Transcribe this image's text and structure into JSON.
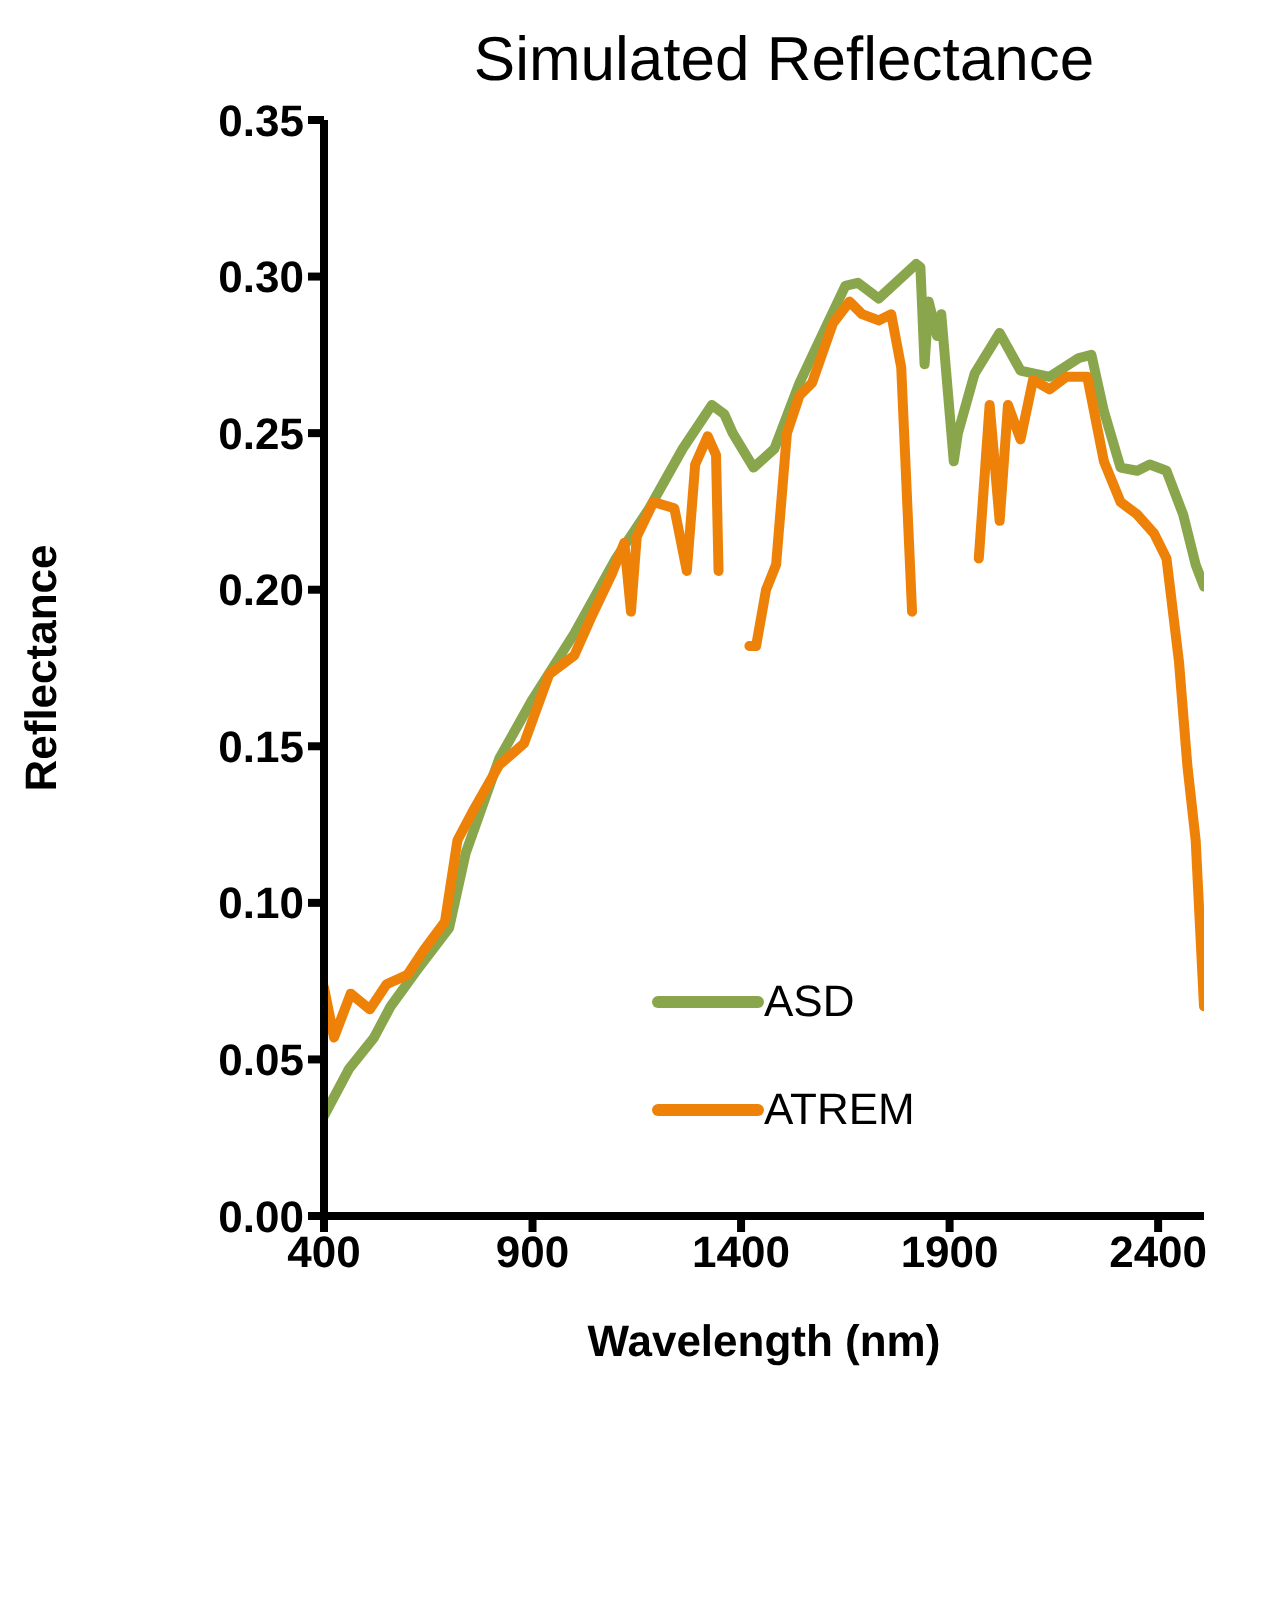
{
  "chart_data": {
    "type": "line",
    "title": "Simulated Reflectance",
    "xlabel": "Wavelength (nm)",
    "ylabel": "Reflectance",
    "xlim": [
      400,
      2510
    ],
    "xticks": [
      400,
      900,
      1400,
      1900,
      2400
    ],
    "ylim": [
      0,
      0.35
    ],
    "yticks": [
      {
        "value": 0,
        "label": "0.00"
      },
      {
        "value": 0.05,
        "label": "0.05"
      },
      {
        "value": 0.1,
        "label": "0.10"
      },
      {
        "value": 0.15,
        "label": "0.15"
      },
      {
        "value": 0.2,
        "label": "0.20"
      },
      {
        "value": 0.25,
        "label": "0.25"
      },
      {
        "value": 0.3,
        "label": "0.30"
      },
      {
        "value": 0.35,
        "label": "0.35"
      }
    ],
    "grid": false,
    "legend": "bottom",
    "marker": "none",
    "line_style": "solid",
    "series": [
      {
        "name": "ASD",
        "color": "#8aa64c",
        "x": [
          400,
          460,
          520,
          560,
          620,
          700,
          740,
          820,
          900,
          1000,
          1100,
          1180,
          1260,
          1330,
          1360,
          1380,
          1430,
          1480,
          1540,
          1600,
          1650,
          1680,
          1730,
          1820,
          1830,
          1840,
          1850,
          1870,
          1880,
          1910,
          1920,
          1960,
          2020,
          2070,
          2140,
          2210,
          2240,
          2270,
          2310,
          2350,
          2380,
          2420,
          2460,
          2490,
          2510
        ],
        "values": [
          0.032,
          0.047,
          0.057,
          0.067,
          0.078,
          0.092,
          0.116,
          0.146,
          0.165,
          0.186,
          0.21,
          0.226,
          0.245,
          0.259,
          0.256,
          0.25,
          0.239,
          0.245,
          0.266,
          0.283,
          0.297,
          0.298,
          0.293,
          0.304,
          0.303,
          0.272,
          0.292,
          0.281,
          0.288,
          0.241,
          0.25,
          0.269,
          0.282,
          0.27,
          0.268,
          0.274,
          0.275,
          0.257,
          0.239,
          0.238,
          0.24,
          0.238,
          0.224,
          0.208,
          0.201
        ]
      },
      {
        "name": "ATREM",
        "color": "#ee8208",
        "x": [
          400,
          424,
          464,
          510,
          550,
          600,
          640,
          690,
          720,
          760,
          820,
          880,
          940,
          1000,
          1040,
          1090,
          1120,
          1136,
          1150,
          1190,
          1240,
          1270,
          1290,
          1320,
          1340,
          1346,
          1380,
          1420,
          1436,
          1460,
          1484,
          1510,
          1540,
          1570,
          1620,
          1660,
          1690,
          1730,
          1760,
          1784,
          1810,
          1890,
          1970,
          1996,
          2020,
          2040,
          2070,
          2100,
          2140,
          2180,
          2230,
          2270,
          2310,
          2350,
          2390,
          2420,
          2450,
          2470,
          2490,
          2510
        ],
        "values": [
          0.073,
          0.057,
          0.071,
          0.066,
          0.074,
          0.077,
          0.085,
          0.094,
          0.12,
          0.13,
          0.144,
          0.151,
          0.173,
          0.179,
          0.191,
          0.205,
          0.215,
          0.193,
          0.217,
          0.228,
          0.226,
          0.206,
          0.24,
          0.249,
          0.243,
          0.206,
          null,
          0.182,
          0.182,
          0.2,
          0.208,
          0.25,
          0.262,
          0.266,
          0.285,
          0.292,
          0.288,
          0.286,
          0.288,
          0.271,
          0.193,
          null,
          0.21,
          0.259,
          0.222,
          0.259,
          0.248,
          0.267,
          0.264,
          0.268,
          0.268,
          0.241,
          0.228,
          0.224,
          0.218,
          0.21,
          0.177,
          0.144,
          0.12,
          0.067
        ]
      }
    ]
  }
}
